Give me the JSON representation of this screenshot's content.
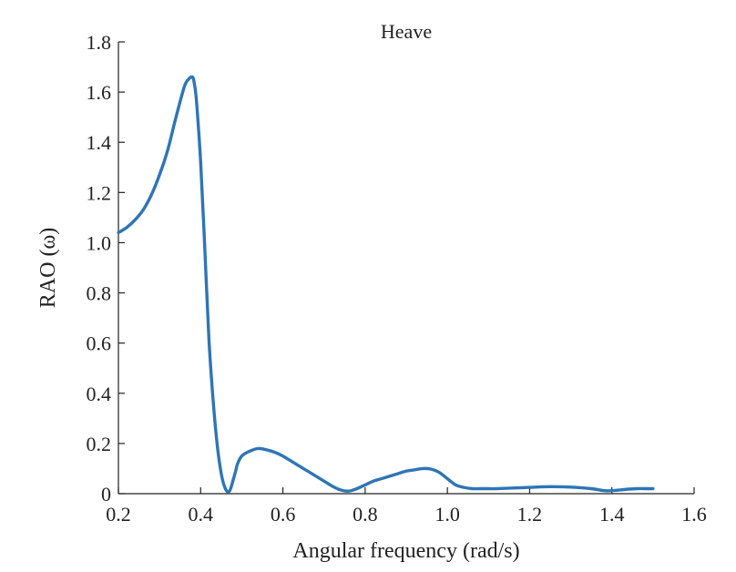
{
  "chart_data": {
    "type": "line",
    "title": "Heave",
    "xlabel": "Angular frequency (rad/s)",
    "ylabel": "RAO (ω)",
    "xlim": [
      0.2,
      1.6
    ],
    "ylim": [
      0,
      1.8
    ],
    "x_ticks": [
      "0.2",
      "0.4",
      "0.6",
      "0.8",
      "1.0",
      "1.2",
      "1.4",
      "1.6"
    ],
    "y_ticks": [
      "0",
      "0.2",
      "0.4",
      "0.6",
      "0.8",
      "1.0",
      "1.2",
      "1.4",
      "1.6",
      "1.8"
    ],
    "grid": false,
    "series": [
      {
        "color": "#2e75b6",
        "x": [
          0.2,
          0.22,
          0.24,
          0.26,
          0.28,
          0.3,
          0.32,
          0.34,
          0.36,
          0.37,
          0.38,
          0.385,
          0.39,
          0.4,
          0.41,
          0.42,
          0.43,
          0.44,
          0.45,
          0.46,
          0.47,
          0.48,
          0.485,
          0.49,
          0.5,
          0.52,
          0.54,
          0.56,
          0.58,
          0.6,
          0.62,
          0.64,
          0.66,
          0.68,
          0.7,
          0.72,
          0.74,
          0.76,
          0.78,
          0.8,
          0.82,
          0.84,
          0.86,
          0.88,
          0.9,
          0.92,
          0.94,
          0.96,
          0.98,
          1.0,
          1.02,
          1.04,
          1.06,
          1.08,
          1.1,
          1.12,
          1.15,
          1.2,
          1.25,
          1.3,
          1.35,
          1.38,
          1.4,
          1.42,
          1.44,
          1.46,
          1.48,
          1.5
        ],
        "y": [
          1.04,
          1.06,
          1.09,
          1.13,
          1.19,
          1.27,
          1.37,
          1.5,
          1.62,
          1.65,
          1.66,
          1.63,
          1.56,
          1.32,
          0.98,
          0.62,
          0.38,
          0.2,
          0.08,
          0.02,
          0.01,
          0.06,
          0.09,
          0.12,
          0.15,
          0.17,
          0.18,
          0.175,
          0.165,
          0.15,
          0.13,
          0.11,
          0.09,
          0.07,
          0.05,
          0.03,
          0.015,
          0.01,
          0.02,
          0.035,
          0.05,
          0.06,
          0.07,
          0.08,
          0.09,
          0.095,
          0.1,
          0.098,
          0.085,
          0.06,
          0.035,
          0.025,
          0.02,
          0.02,
          0.02,
          0.02,
          0.022,
          0.025,
          0.028,
          0.026,
          0.02,
          0.012,
          0.012,
          0.015,
          0.018,
          0.02,
          0.02,
          0.02
        ]
      }
    ]
  }
}
